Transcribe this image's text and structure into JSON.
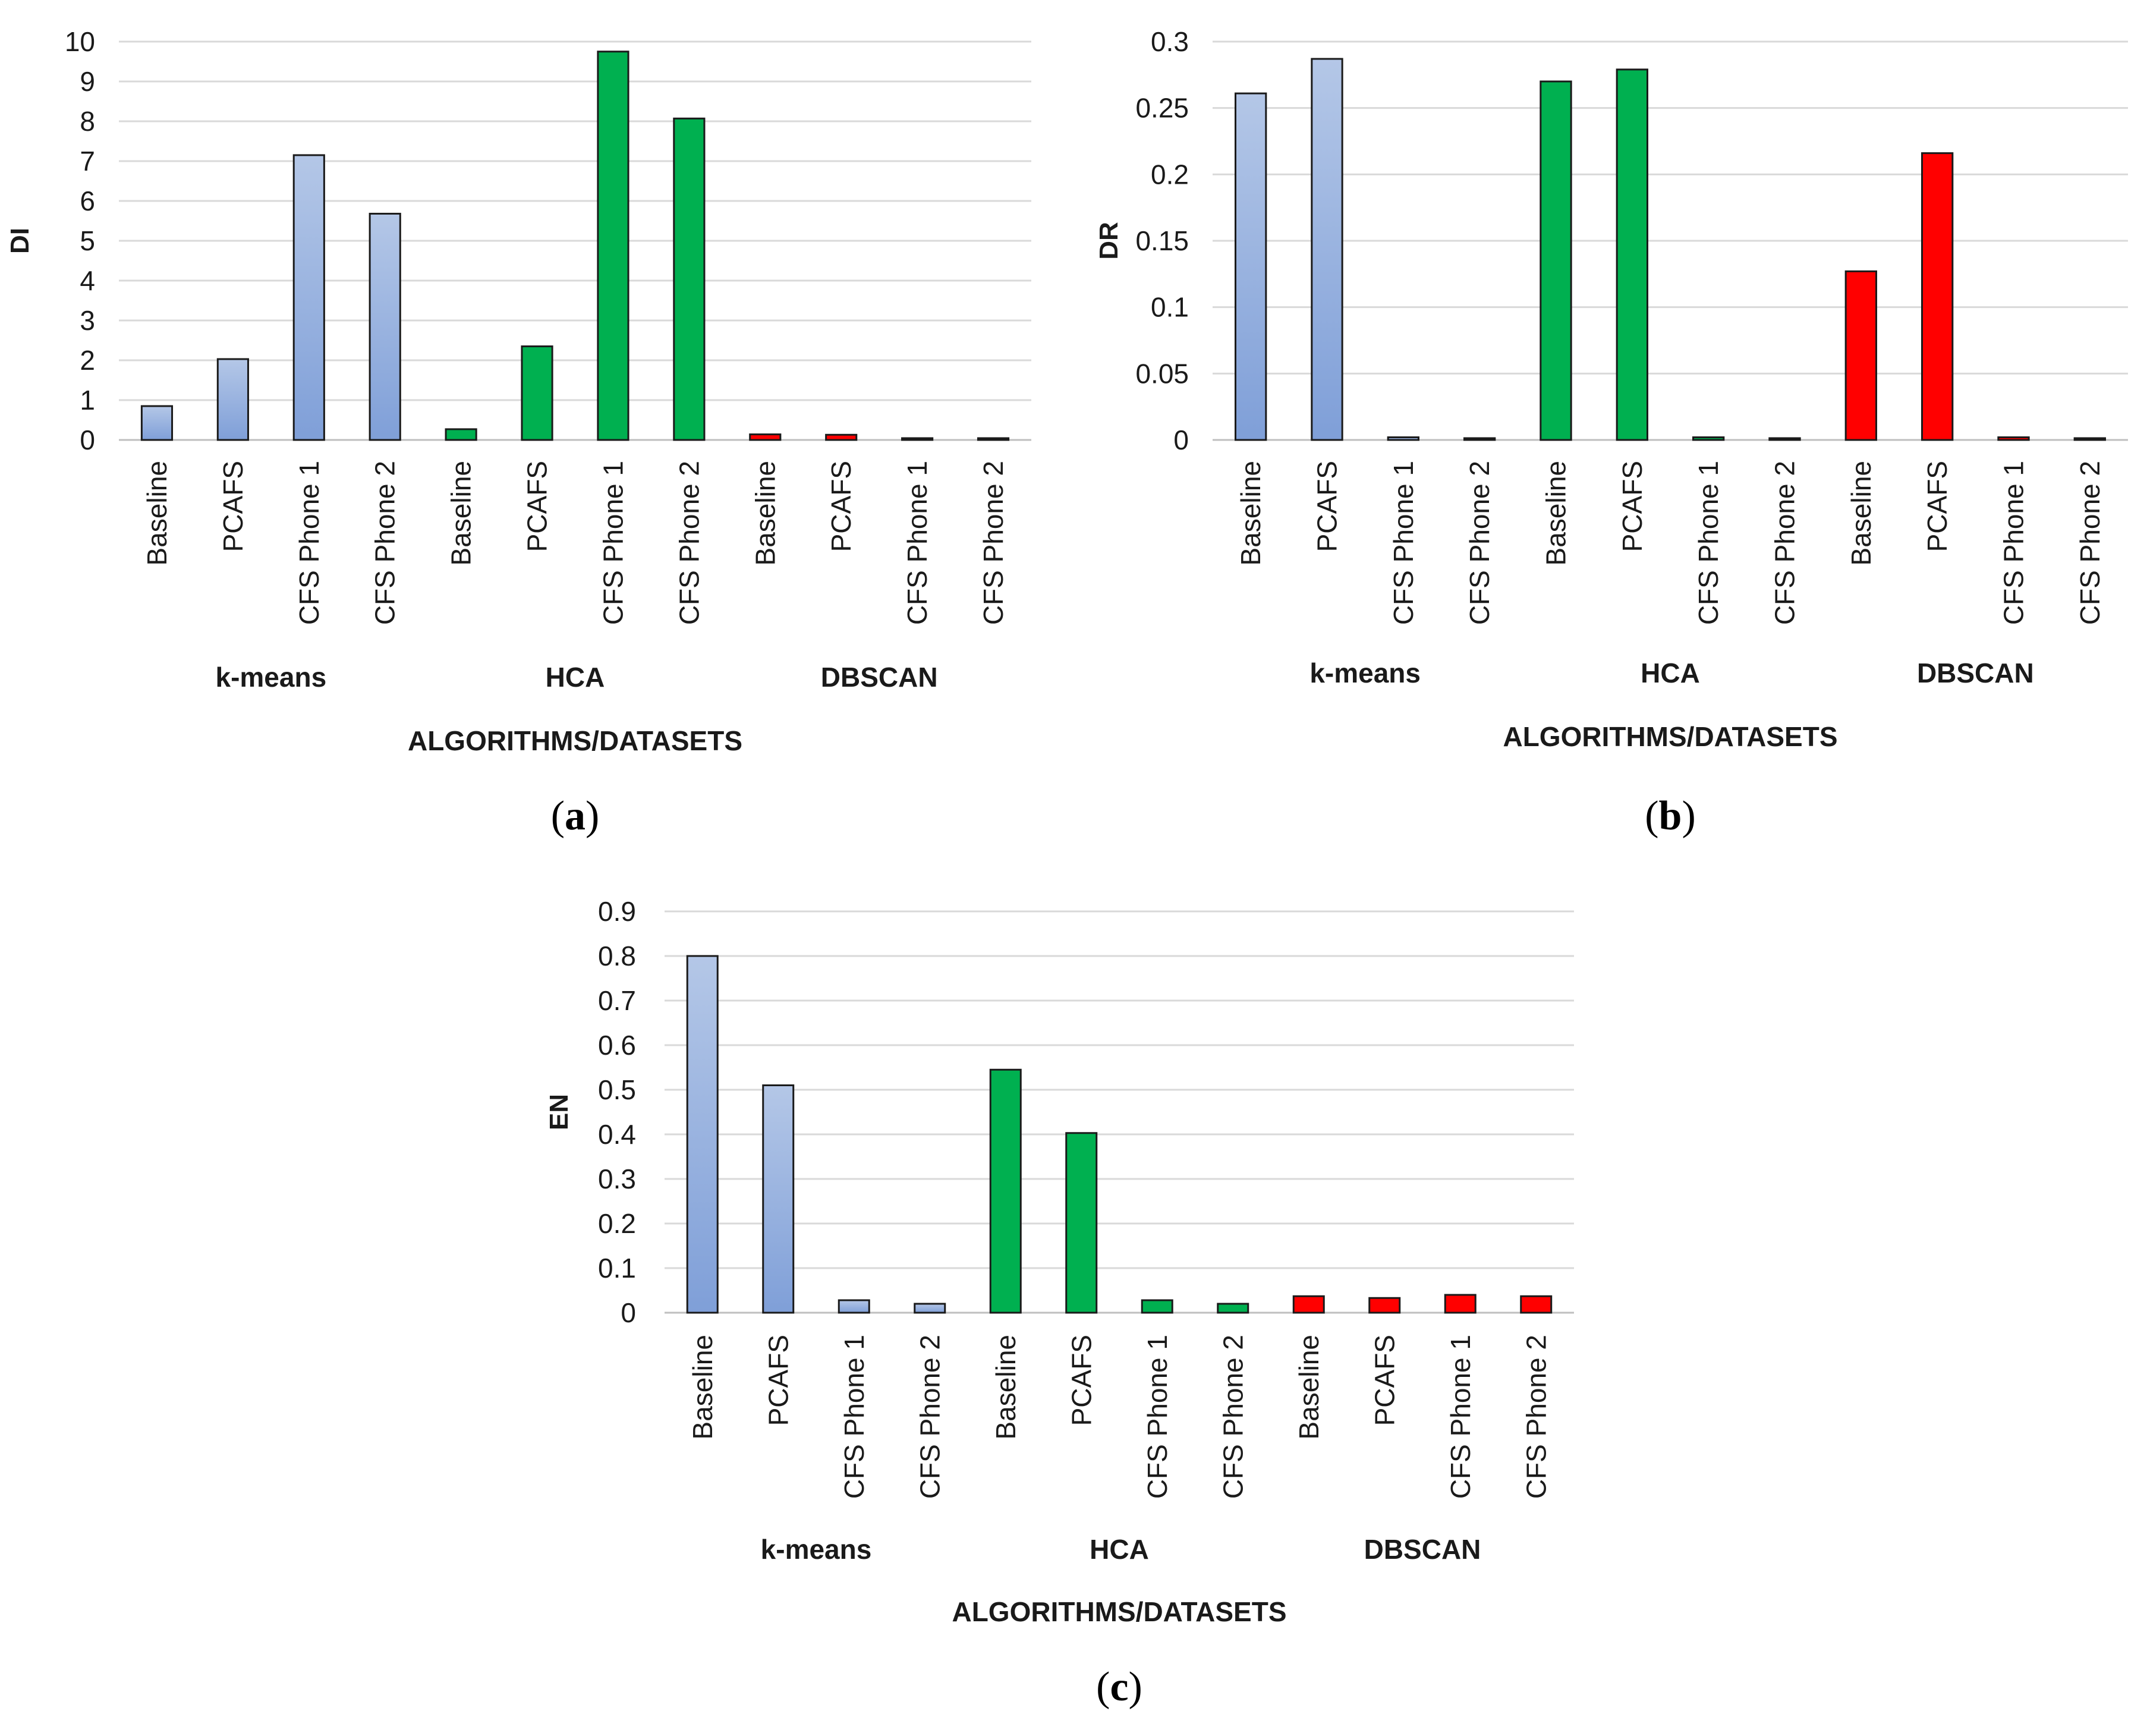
{
  "colors": {
    "kmeans_top": "#b4c7e7",
    "kmeans_bottom": "#7f9fd8",
    "hca": "#00b050",
    "dbscan": "#ff0000",
    "bar_outline": "#1a1a1a"
  },
  "chart_data": [
    {
      "type": "bar",
      "panel": "a",
      "ylabel": "DI",
      "xlabel": "ALGORITHMS/DATASETS",
      "ylim": [
        0,
        10
      ],
      "ytick_labels": [
        "0",
        "1",
        "2",
        "3",
        "4",
        "5",
        "6",
        "7",
        "8",
        "9",
        "10"
      ],
      "groups": [
        {
          "name": "k-means",
          "series_color": "kmeans",
          "categories": [
            "Baseline",
            "PCAFS",
            "CFS Phone 1",
            "CFS Phone 2"
          ],
          "values": [
            0.85,
            2.03,
            7.15,
            5.68
          ]
        },
        {
          "name": "HCA",
          "series_color": "hca",
          "categories": [
            "Baseline",
            "PCAFS",
            "CFS Phone 1",
            "CFS Phone 2"
          ],
          "values": [
            0.27,
            2.35,
            9.75,
            8.07
          ]
        },
        {
          "name": "DBSCAN",
          "series_color": "dbscan",
          "categories": [
            "Baseline",
            "PCAFS",
            "CFS Phone 1",
            "CFS Phone 2"
          ],
          "values": [
            0.14,
            0.13,
            0.04,
            0.04
          ]
        }
      ]
    },
    {
      "type": "bar",
      "panel": "b",
      "ylabel": "DR",
      "xlabel": "ALGORITHMS/DATASETS",
      "ylim": [
        0,
        0.3
      ],
      "ytick_labels": [
        "0",
        "0.05",
        "0.1",
        "0.15",
        "0.2",
        "0.25",
        "0.3"
      ],
      "groups": [
        {
          "name": "k-means",
          "series_color": "kmeans",
          "categories": [
            "Baseline",
            "PCAFS",
            "CFS Phone 1",
            "CFS Phone 2"
          ],
          "values": [
            0.261,
            0.287,
            0.002,
            0.001
          ]
        },
        {
          "name": "HCA",
          "series_color": "hca",
          "categories": [
            "Baseline",
            "PCAFS",
            "CFS Phone 1",
            "CFS Phone 2"
          ],
          "values": [
            0.27,
            0.279,
            0.002,
            0.001
          ]
        },
        {
          "name": "DBSCAN",
          "series_color": "dbscan",
          "categories": [
            "Baseline",
            "PCAFS",
            "CFS Phone 1",
            "CFS Phone 2"
          ],
          "values": [
            0.127,
            0.216,
            0.002,
            0.001
          ]
        }
      ]
    },
    {
      "type": "bar",
      "panel": "c",
      "ylabel": "EN",
      "xlabel": "ALGORITHMS/DATASETS",
      "ylim": [
        0,
        0.9
      ],
      "ytick_labels": [
        "0",
        "0.1",
        "0.2",
        "0.3",
        "0.4",
        "0.5",
        "0.6",
        "0.7",
        "0.8",
        "0.9"
      ],
      "groups": [
        {
          "name": "k-means",
          "series_color": "kmeans",
          "categories": [
            "Baseline",
            "PCAFS",
            "CFS Phone 1",
            "CFS Phone 2"
          ],
          "values": [
            0.8,
            0.51,
            0.028,
            0.02
          ]
        },
        {
          "name": "HCA",
          "series_color": "hca",
          "categories": [
            "Baseline",
            "PCAFS",
            "CFS Phone 1",
            "CFS Phone 2"
          ],
          "values": [
            0.545,
            0.403,
            0.028,
            0.02
          ]
        },
        {
          "name": "DBSCAN",
          "series_color": "dbscan",
          "categories": [
            "Baseline",
            "PCAFS",
            "CFS Phone 1",
            "CFS Phone 2"
          ],
          "values": [
            0.037,
            0.033,
            0.04,
            0.037
          ]
        }
      ]
    }
  ]
}
